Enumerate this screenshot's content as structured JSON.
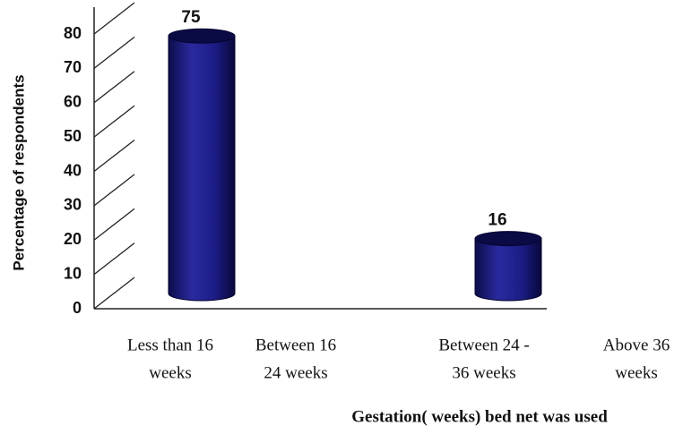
{
  "chart_data": {
    "type": "bar",
    "categories": [
      [
        "Less than 16",
        "weeks"
      ],
      [
        "Between 16",
        "24 weeks"
      ],
      [
        "Between 24 -",
        "36 weeks"
      ],
      [
        "Above 36",
        "weeks"
      ]
    ],
    "values": [
      75,
      null,
      16,
      null
    ],
    "color": "#1c1c86",
    "ylabel": "Percentage of respondents",
    "xlabel": "Gestation( weeks) bed net was used",
    "ylim": [
      0,
      80
    ],
    "yticks": [
      0,
      10,
      20,
      30,
      40,
      50,
      60,
      70,
      80
    ],
    "grid": true
  }
}
